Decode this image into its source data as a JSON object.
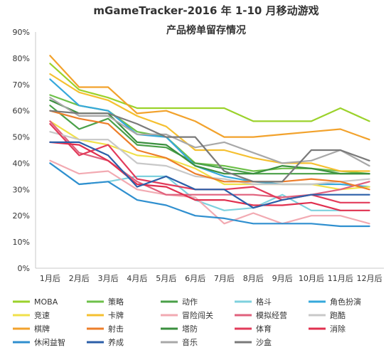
{
  "chart_data": {
    "type": "line",
    "title": "mGameTracker-2016 年 1-10 月移动游戏",
    "subtitle": "产品榜单留存情况",
    "xlabel": "",
    "ylabel": "",
    "categories": [
      "1月后",
      "2月后",
      "3月后",
      "4月后",
      "5月后",
      "6月后",
      "7月后",
      "8月后",
      "9月后",
      "10月后",
      "11月后",
      "12月后"
    ],
    "y_ticks": [
      "0%",
      "10%",
      "20%",
      "30%",
      "40%",
      "50%",
      "60%",
      "70%",
      "80%",
      "90%"
    ],
    "ylim": [
      0,
      90
    ],
    "grid": false,
    "legend_position": "bottom",
    "series": [
      {
        "name": "MOBA",
        "color": "#9bd22b",
        "values": [
          78,
          68,
          65,
          61,
          61,
          61,
          61,
          56,
          56,
          56,
          61,
          56
        ]
      },
      {
        "name": "策略",
        "color": "#6ec04a",
        "values": [
          66,
          62,
          60,
          52,
          50,
          40,
          39,
          37,
          38,
          38,
          37,
          36
        ]
      },
      {
        "name": "动作",
        "color": "#4aa048",
        "values": [
          62,
          53,
          57,
          47,
          46,
          40,
          38,
          36,
          36,
          36,
          36,
          36
        ]
      },
      {
        "name": "格斗",
        "color": "#7ed1de",
        "values": [
          40,
          32,
          33,
          35,
          35,
          26,
          22,
          23,
          28,
          22,
          22,
          null
        ]
      },
      {
        "name": "角色扮演",
        "color": "#36a8db",
        "values": [
          72,
          62,
          60,
          51,
          50,
          39,
          35,
          33,
          32,
          32,
          32,
          31
        ]
      },
      {
        "name": "竞速",
        "color": "#f0e04a",
        "values": [
          56,
          49,
          47,
          43,
          42,
          38,
          32,
          32,
          32,
          32,
          30,
          31
        ]
      },
      {
        "name": "卡牌",
        "color": "#f5c030",
        "values": [
          74,
          67,
          64,
          58,
          54,
          45,
          45,
          42,
          40,
          40,
          37,
          37
        ]
      },
      {
        "name": "冒险闯关",
        "color": "#f2aab2",
        "values": [
          41,
          36,
          37,
          30,
          28,
          27,
          17,
          21,
          17,
          20,
          20,
          17
        ]
      },
      {
        "name": "模拟经营",
        "color": "#e0607c",
        "values": [
          56,
          44,
          41,
          33,
          28,
          28,
          28,
          28,
          27,
          28,
          30,
          33
        ]
      },
      {
        "name": "跑酷",
        "color": "#c8c8c8",
        "values": [
          52,
          49,
          49,
          40,
          39,
          35,
          34,
          32,
          32,
          32,
          33,
          34
        ]
      },
      {
        "name": "棋牌",
        "color": "#f2a22c",
        "values": [
          81,
          69,
          69,
          59,
          60,
          56,
          50,
          50,
          51,
          52,
          53,
          49
        ]
      },
      {
        "name": "射击",
        "color": "#ed7e2a",
        "values": [
          60,
          57,
          55,
          45,
          42,
          36,
          33,
          33,
          33,
          34,
          33,
          30
        ]
      },
      {
        "name": "塔防",
        "color": "#3a8f3e",
        "values": [
          64,
          59,
          59,
          48,
          47,
          39,
          36,
          36,
          39,
          38,
          36,
          36
        ]
      },
      {
        "name": "体育",
        "color": "#e23b5a",
        "values": [
          55,
          43,
          47,
          34,
          32,
          30,
          30,
          31,
          26,
          28,
          25,
          25
        ]
      },
      {
        "name": "消除",
        "color": "#e0304f",
        "values": [
          48,
          47,
          41,
          32,
          31,
          26,
          26,
          24,
          24,
          25,
          22,
          22
        ]
      },
      {
        "name": "休闲益智",
        "color": "#2f8fcf",
        "values": [
          40,
          32,
          33,
          26,
          24,
          20,
          19,
          17,
          17,
          17,
          16,
          16
        ]
      },
      {
        "name": "养成",
        "color": "#2b5fa8",
        "values": [
          48,
          48,
          43,
          31,
          35,
          30,
          30,
          23,
          26,
          28,
          28,
          28
        ]
      },
      {
        "name": "音乐",
        "color": "#a8a8a8",
        "values": [
          65,
          58,
          58,
          51,
          51,
          46,
          48,
          44,
          40,
          41,
          45,
          39
        ]
      },
      {
        "name": "沙盒",
        "color": "#7a7a7a",
        "values": [
          60,
          59,
          59,
          55,
          50,
          50,
          37,
          33,
          33,
          45,
          45,
          41
        ]
      }
    ]
  }
}
